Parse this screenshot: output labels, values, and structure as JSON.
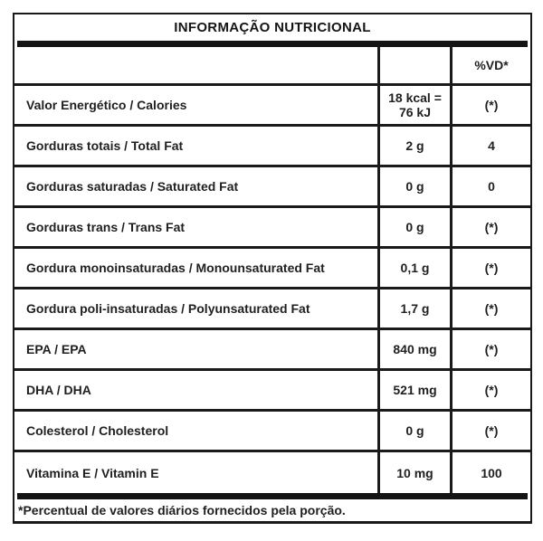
{
  "table": {
    "title": "INFORMAÇÃO NUTRICIONAL",
    "header": {
      "label": "",
      "value": "",
      "vd_label": "%VD*"
    },
    "rows": [
      {
        "label": "Valor Energético / Calories",
        "value": "18 kcal =\n76 kJ",
        "vd": "(*)"
      },
      {
        "label": "Gorduras totais / Total Fat",
        "value": "2 g",
        "vd": "4"
      },
      {
        "label": "Gorduras saturadas / Saturated Fat",
        "value": "0 g",
        "vd": "0"
      },
      {
        "label": "Gorduras trans / Trans Fat",
        "value": "0 g",
        "vd": "(*)"
      },
      {
        "label": "Gordura monoinsaturadas / Monounsaturated Fat",
        "value": "0,1 g",
        "vd": "(*)"
      },
      {
        "label": "Gordura poli-insaturadas / Polyunsaturated Fat",
        "value": "1,7 g",
        "vd": "(*)"
      },
      {
        "label": "EPA / EPA",
        "value": "840 mg",
        "vd": "(*)"
      },
      {
        "label": "DHA / DHA",
        "value": "521 mg",
        "vd": "(*)"
      },
      {
        "label": "Colesterol / Cholesterol",
        "value": "0 g",
        "vd": "(*)"
      },
      {
        "label": "Vitamina E / Vitamin E",
        "value": "10 mg",
        "vd": "100"
      }
    ],
    "footnote": "*Percentual de valores diários fornecidos pela porção.",
    "colors": {
      "line": "#1a1a1a",
      "text": "#1f1f1f",
      "background": "#ffffff"
    }
  }
}
